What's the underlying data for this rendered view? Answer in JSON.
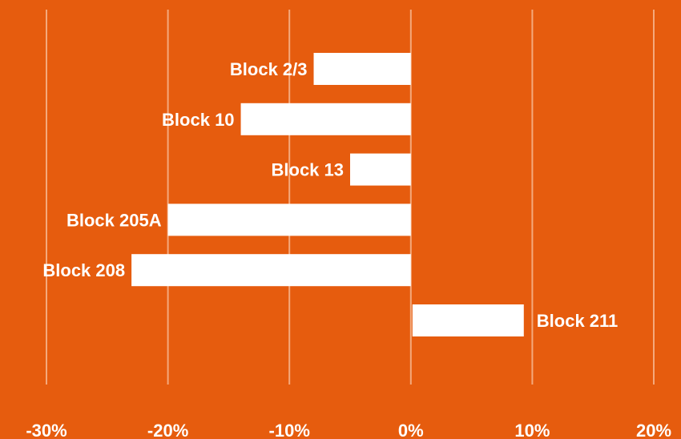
{
  "chart_data": {
    "type": "bar",
    "orientation": "horizontal",
    "categories": [
      "Block 2/3",
      "Block 10",
      "Block 13",
      "Block 205A",
      "Block 208",
      "Block 211"
    ],
    "values": [
      -8,
      -14,
      -5,
      -20,
      -23,
      9.3
    ],
    "unit": "%",
    "xlim": [
      -30,
      20
    ],
    "x_ticks": [
      -30,
      -20,
      -10,
      0,
      10,
      20
    ],
    "x_tick_labels": [
      "-30%",
      "-20%",
      "-10%",
      "0%",
      "10%",
      "20%"
    ],
    "grid": "vertical",
    "legend": "none",
    "title": "",
    "xlabel": "",
    "ylabel": ""
  },
  "colors": {
    "background": "#E65C0E",
    "bar": "#FFFFFF",
    "grid": "#F4A97C",
    "text": "#FFFFFF"
  }
}
